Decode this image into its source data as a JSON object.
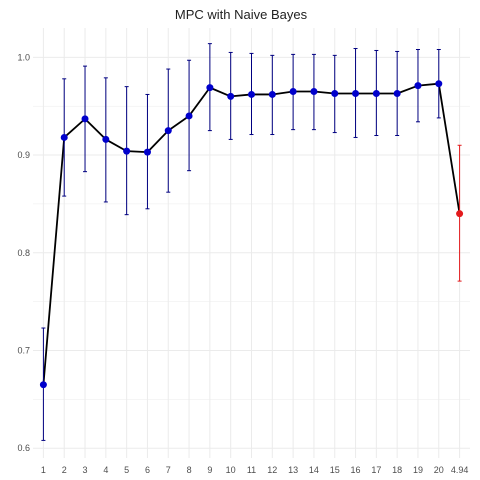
{
  "chart_data": {
    "type": "line",
    "title": "MPC with Naive Bayes",
    "xlabel": "",
    "ylabel": "",
    "x_tick_labels": [
      "1",
      "2",
      "3",
      "4",
      "5",
      "6",
      "7",
      "8",
      "9",
      "10",
      "11",
      "12",
      "13",
      "14",
      "15",
      "16",
      "17",
      "18",
      "19",
      "20",
      "4.94"
    ],
    "y_ticks": [
      0.6,
      0.7,
      0.8,
      0.9,
      1.0
    ],
    "y_tick_labels": [
      "0.6",
      "0.7",
      "0.8",
      "0.9",
      "1.0"
    ],
    "ylim": [
      0.59,
      1.03
    ],
    "grid": true,
    "legend": "none",
    "series": [
      {
        "values": [
          0.665,
          0.918,
          0.937,
          0.916,
          0.904,
          0.903,
          0.925,
          0.94,
          0.969,
          0.96,
          0.962,
          0.962,
          0.965,
          0.965,
          0.963,
          0.963,
          0.963,
          0.963,
          0.971,
          0.973
        ],
        "lower": [
          0.608,
          0.858,
          0.883,
          0.852,
          0.839,
          0.845,
          0.862,
          0.884,
          0.925,
          0.916,
          0.921,
          0.921,
          0.926,
          0.926,
          0.923,
          0.918,
          0.92,
          0.92,
          0.934,
          0.938
        ],
        "upper": [
          0.723,
          0.978,
          0.991,
          0.979,
          0.97,
          0.962,
          0.988,
          0.997,
          1.014,
          1.005,
          1.004,
          1.002,
          1.003,
          1.003,
          1.002,
          1.009,
          1.007,
          1.006,
          1.008,
          1.008
        ],
        "color": "#0000cc",
        "errorbar_color": "#000080"
      },
      {
        "values": [
          0.84
        ],
        "lower": [
          0.771
        ],
        "upper": [
          0.91
        ],
        "color": "#e31a1c",
        "errorbar_color": "#e31a1c"
      }
    ],
    "line_color": "#000000",
    "grid_color": "#ebebeb"
  }
}
